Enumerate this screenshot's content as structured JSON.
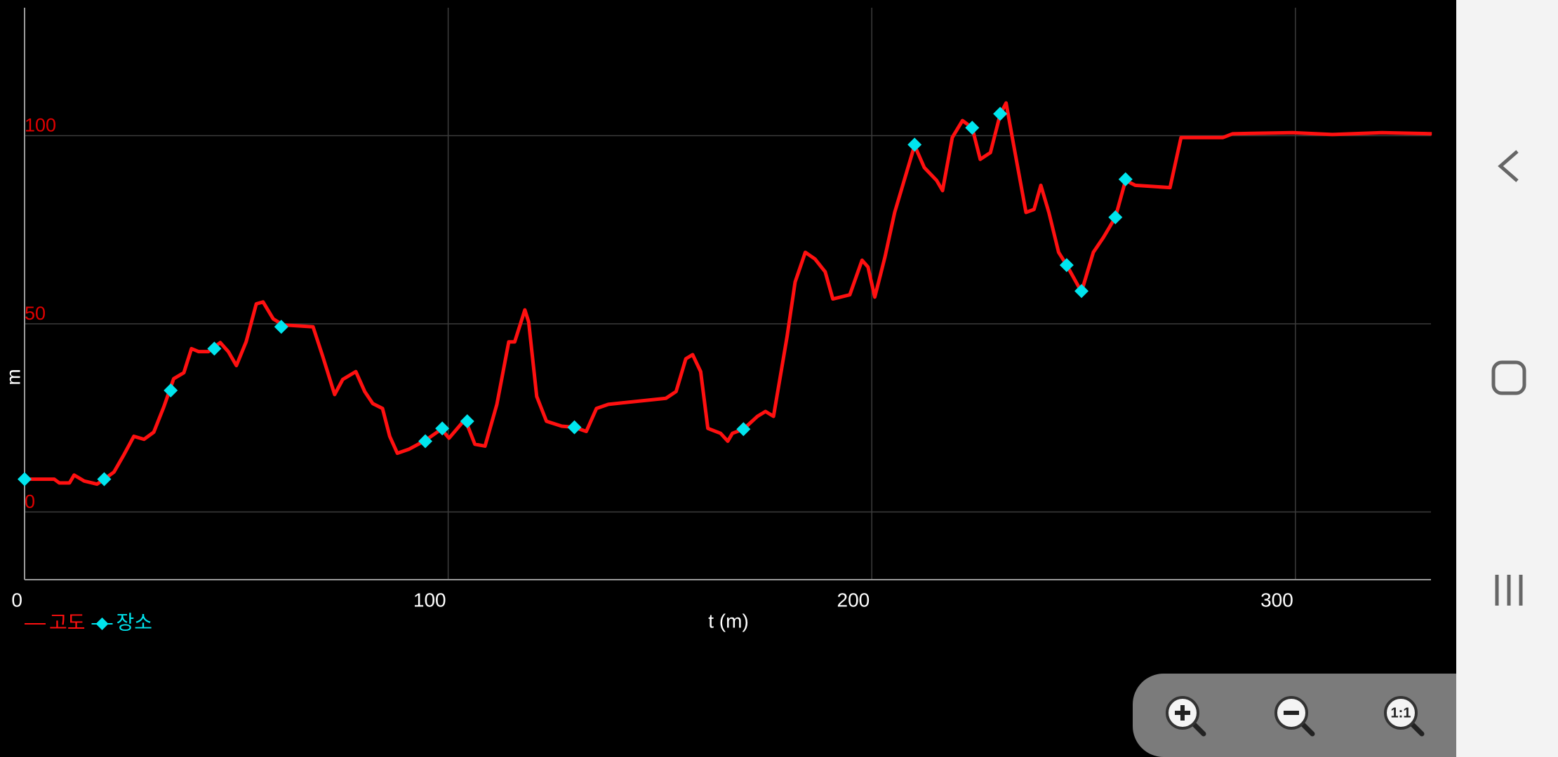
{
  "chart_data": {
    "type": "line",
    "xlabel": "t (m)",
    "ylabel": "m",
    "xlim": [
      0,
      332
    ],
    "ylim": [
      -18,
      134
    ],
    "xticks": [
      0,
      100,
      200,
      300
    ],
    "yticks": [
      0,
      50,
      100
    ],
    "ytick_color": "#e00000",
    "grid": true,
    "legend": "bottom-left",
    "series": [
      {
        "name": "고도",
        "color": "#ff1010",
        "type": "line",
        "x": [
          0,
          7.0,
          8.2,
          10.6,
          11.7,
          14.1,
          17.1,
          18.8,
          21.1,
          23.5,
          25.8,
          28.2,
          30.5,
          32.9,
          35.2,
          37.6,
          39.4,
          41.1,
          43.4,
          46.2,
          48.1,
          50.0,
          52.3,
          54.7,
          56.3,
          58.7,
          61.0,
          68.1,
          70.4,
          73.2,
          75.1,
          78.2,
          80.3,
          82.2,
          84.5,
          86.2,
          88.0,
          90.8,
          94.6,
          98.4,
          100.2,
          104.0,
          106.3,
          108.7,
          111.5,
          114.3,
          115.7,
          118.1,
          119.0,
          120.9,
          123.2,
          126.8,
          129.8,
          132.6,
          135.0,
          137.8,
          151.4,
          153.8,
          156.1,
          157.7,
          159.6,
          161.3,
          164.3,
          166.0,
          167.1,
          169.7,
          173.0,
          174.9,
          176.8,
          180.0,
          181.9,
          184.3,
          186.6,
          189.0,
          190.8,
          194.8,
          197.7,
          199.1,
          200.7,
          203.1,
          205.4,
          210.1,
          212.4,
          215.3,
          216.7,
          219.0,
          221.4,
          223.7,
          225.6,
          228.0,
          230.3,
          231.7,
          233.6,
          236.4,
          238.3,
          239.9,
          241.8,
          244.1,
          246.0,
          249.5,
          252.3,
          254.7,
          257.5,
          259.9,
          262.2,
          270.4,
          273.0,
          282.9,
          285.2,
          299.3,
          308.7,
          320.4,
          332.2
        ],
        "values": [
          8.7,
          8.7,
          7.7,
          7.7,
          9.8,
          8.2,
          7.4,
          8.7,
          10.6,
          15.3,
          20.1,
          19.3,
          21.2,
          28.0,
          35.4,
          37.0,
          43.4,
          42.6,
          42.6,
          45.0,
          42.6,
          38.9,
          45.2,
          55.3,
          55.8,
          51.3,
          49.7,
          49.2,
          41.3,
          31.2,
          35.2,
          37.3,
          32.0,
          28.8,
          27.5,
          20.1,
          15.6,
          16.7,
          19.0,
          22.0,
          19.6,
          24.6,
          18.0,
          17.5,
          28.6,
          45.2,
          45.2,
          53.7,
          50.5,
          30.7,
          24.1,
          22.8,
          22.5,
          21.4,
          27.5,
          28.6,
          30.2,
          32.0,
          40.7,
          41.8,
          37.3,
          22.2,
          20.9,
          18.8,
          20.9,
          22.0,
          25.4,
          26.7,
          25.4,
          46.6,
          61.1,
          69.0,
          67.2,
          63.8,
          56.6,
          57.7,
          66.9,
          65.1,
          57.1,
          67.7,
          79.6,
          97.4,
          91.5,
          88.1,
          85.4,
          99.5,
          104.0,
          102.1,
          93.7,
          95.5,
          105.6,
          108.7,
          96.8,
          79.6,
          80.4,
          86.8,
          79.6,
          69.0,
          65.6,
          58.5,
          69.0,
          73.0,
          78.3,
          88.1,
          86.8,
          86.2,
          99.5,
          99.5,
          100.5,
          100.8,
          100.3,
          100.8,
          100.5
        ]
      },
      {
        "name": "장소",
        "color": "#00e5ee",
        "type": "scatter",
        "x": [
          0,
          18.8,
          34.5,
          44.8,
          60.6,
          94.6,
          98.6,
          104.5,
          129.8,
          169.7,
          210.1,
          223.7,
          230.3,
          246.0,
          249.5,
          257.5,
          259.9
        ],
        "values": [
          8.7,
          8.7,
          32.3,
          43.4,
          49.2,
          18.8,
          22.2,
          24.1,
          22.5,
          22.0,
          97.6,
          102.1,
          105.8,
          65.6,
          58.7,
          78.3,
          88.4
        ]
      }
    ]
  },
  "zoom_controls": {
    "reset_label": "1:1"
  }
}
